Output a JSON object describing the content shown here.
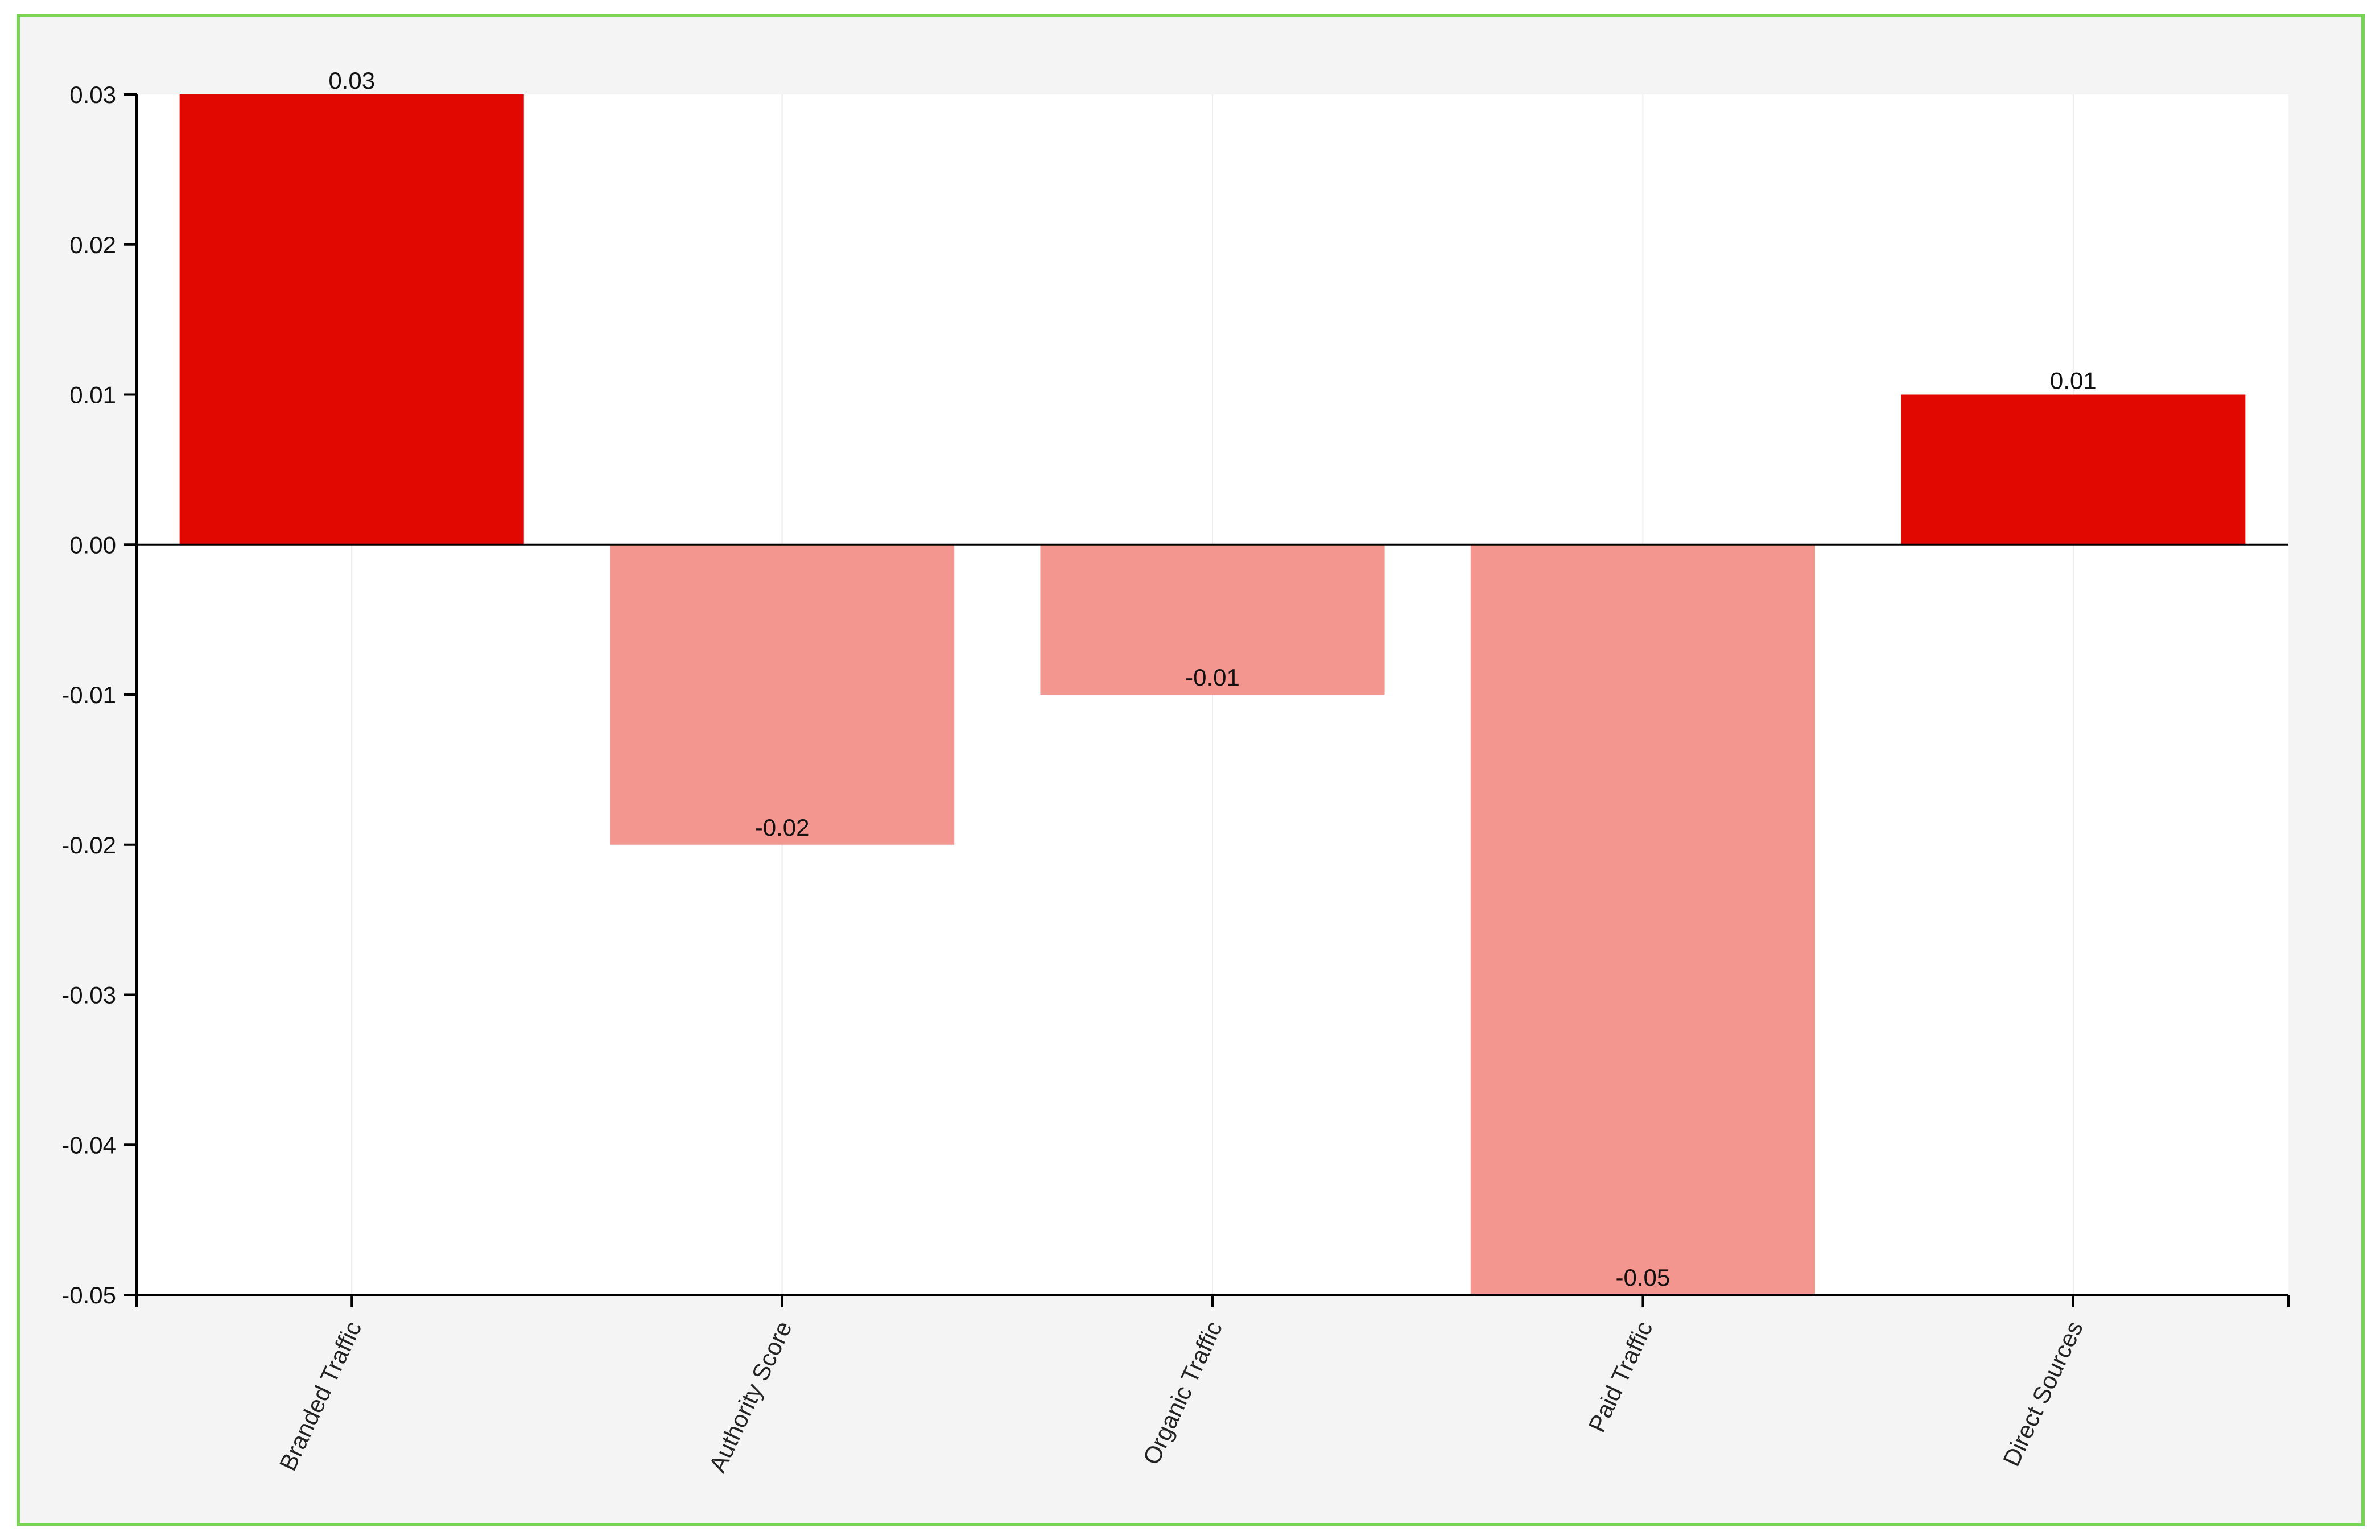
{
  "chart_data": {
    "type": "bar",
    "categories": [
      "Branded Traffic",
      "Authority Score",
      "Organic Traffic",
      "Paid Traffic",
      "Direct Sources"
    ],
    "values": [
      0.03,
      -0.02,
      -0.01,
      -0.05,
      0.01
    ],
    "data_labels": [
      "0.03",
      "-0.02",
      "-0.01",
      "-0.05",
      "0.01"
    ],
    "ylim": [
      -0.05,
      0.03
    ],
    "yticks": [
      0.03,
      0.02,
      0.01,
      0.0,
      -0.01,
      -0.02,
      -0.03,
      -0.04,
      -0.05
    ],
    "ytick_labels": [
      "0.03",
      "0.02",
      "0.01",
      "0.00",
      "-0.01",
      "-0.02",
      "-0.03",
      "-0.04",
      "-0.05"
    ],
    "grid": "vertical",
    "legend": "none",
    "colors": {
      "positive": "#e00800",
      "negative": "#f2968f",
      "frame_border": "#77d455",
      "frame_bg": "#f4f4f4",
      "plot_bg": "#ffffff"
    }
  }
}
